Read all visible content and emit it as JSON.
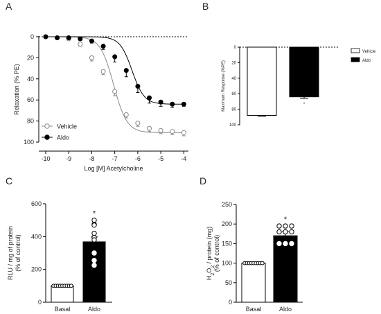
{
  "panels": {
    "a": "A",
    "b": "B",
    "c": "C",
    "d": "D"
  },
  "chart_data": [
    {
      "id": "A",
      "type": "line",
      "xlabel": "Log [M] Acetylcholine",
      "ylabel": "Relaxation (% PE)",
      "xlim": [
        -10.3,
        -3.8
      ],
      "ylim": [
        0,
        100
      ],
      "y_inverted": true,
      "xticks": [
        "-10",
        "-9",
        "-8",
        "-7",
        "-6",
        "-5",
        "-4"
      ],
      "yticks": [
        "0",
        "20",
        "40",
        "60",
        "80",
        "100"
      ],
      "legend_position": "bottom-left",
      "series": [
        {
          "name": "Vehicle",
          "marker": "open-circle",
          "color": "#888888",
          "x": [
            -10,
            -9.5,
            -9,
            -8.5,
            -8,
            -7.5,
            -7,
            -6.5,
            -6,
            -5.5,
            -5,
            -4.5,
            -4
          ],
          "y": [
            0,
            1,
            2,
            7,
            20,
            33,
            52,
            74,
            82,
            87,
            89,
            90,
            91
          ],
          "err": [
            0.5,
            0.5,
            1,
            2,
            3,
            3,
            4,
            3,
            3,
            3,
            3,
            3,
            3
          ]
        },
        {
          "name": "Aldo",
          "marker": "filled-circle",
          "color": "#000000",
          "x": [
            -10,
            -9.5,
            -9,
            -8.5,
            -8,
            -7.5,
            -7,
            -6.5,
            -6,
            -5.5,
            -5,
            -4.5,
            -4
          ],
          "y": [
            0,
            1,
            1,
            2,
            4,
            9,
            19,
            32,
            47,
            58,
            62,
            64,
            64
          ],
          "err": [
            0.5,
            0.5,
            1,
            1.5,
            2,
            3,
            5,
            6,
            6,
            5,
            4,
            3,
            2
          ]
        }
      ]
    },
    {
      "id": "B",
      "type": "bar",
      "ylabel": "Maximum Response (%PE)",
      "ylim": [
        0,
        100
      ],
      "y_inverted": true,
      "yticks": [
        "0",
        "20",
        "40",
        "60",
        "80",
        "100"
      ],
      "legend_position": "right",
      "categories": [
        "Vehicle",
        "Aldo"
      ],
      "values": [
        88,
        64
      ],
      "errors": [
        1,
        2
      ],
      "colors": [
        "#ffffff",
        "#000000"
      ],
      "significance": [
        null,
        "*"
      ]
    },
    {
      "id": "C",
      "type": "bar",
      "ylabel": "RLU / mg of protein",
      "ylabel2": "(% of control)",
      "ylim": [
        0,
        600
      ],
      "yticks": [
        "0",
        "200",
        "400",
        "600"
      ],
      "categories": [
        "Basal",
        "Aldo"
      ],
      "values": [
        100,
        368
      ],
      "errors": [
        3,
        30
      ],
      "colors": [
        "#ffffff",
        "#000000"
      ],
      "significance": [
        null,
        "*"
      ],
      "points": [
        [
          100,
          100,
          100,
          100,
          100,
          100,
          100,
          100,
          100
        ],
        [
          500,
          475,
          470,
          420,
          395,
          380,
          300,
          255,
          225
        ]
      ]
    },
    {
      "id": "D",
      "type": "bar",
      "ylabel": "H2O2 / protein (mg)",
      "ylabel2": "(% of control)",
      "ylim": [
        0,
        250
      ],
      "yticks": [
        "0",
        "50",
        "100",
        "150",
        "200",
        "250"
      ],
      "categories": [
        "Basal",
        "Aldo"
      ],
      "values": [
        100,
        170
      ],
      "errors": [
        2,
        10
      ],
      "colors": [
        "#ffffff",
        "#000000"
      ],
      "significance": [
        null,
        "*"
      ],
      "points": [
        [
          100,
          100,
          100,
          100,
          100,
          100,
          100,
          100,
          100
        ],
        [
          195,
          195,
          195,
          180,
          180,
          180,
          150,
          150,
          150
        ]
      ]
    }
  ]
}
